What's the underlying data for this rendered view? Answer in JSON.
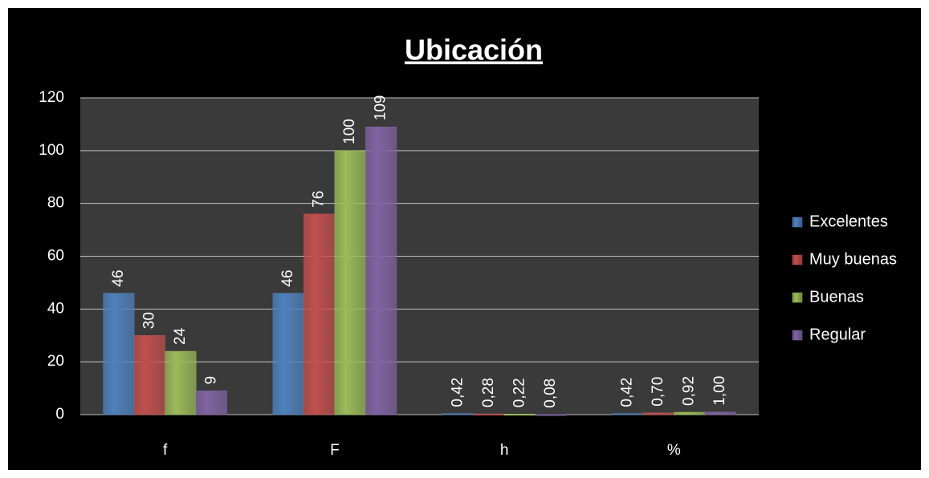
{
  "chart_data": {
    "type": "bar",
    "title": "Ubicación",
    "categories": [
      "f",
      "F",
      "h",
      "%"
    ],
    "series": [
      {
        "name": "Excelentes",
        "color": "#4f81bd",
        "values": [
          46,
          46,
          0.42,
          0.42
        ],
        "value_labels": [
          "46",
          "46",
          "0,42",
          "0,42"
        ]
      },
      {
        "name": "Muy buenas",
        "color": "#c0504d",
        "values": [
          30,
          76,
          0.28,
          0.7
        ],
        "value_labels": [
          "30",
          "76",
          "0,28",
          "0,70"
        ]
      },
      {
        "name": "Buenas",
        "color": "#9bbb59",
        "values": [
          24,
          100,
          0.22,
          0.92
        ],
        "value_labels": [
          "24",
          "100",
          "0,22",
          "0,92"
        ]
      },
      {
        "name": "Regular",
        "color": "#8064a2",
        "values": [
          9,
          109,
          0.08,
          1.0
        ],
        "value_labels": [
          "9",
          "109",
          "0,08",
          "1,00"
        ]
      }
    ],
    "ylim": [
      0,
      120
    ],
    "yticks": [
      0,
      20,
      40,
      60,
      80,
      100,
      120
    ],
    "grid": true,
    "legend": "right"
  }
}
